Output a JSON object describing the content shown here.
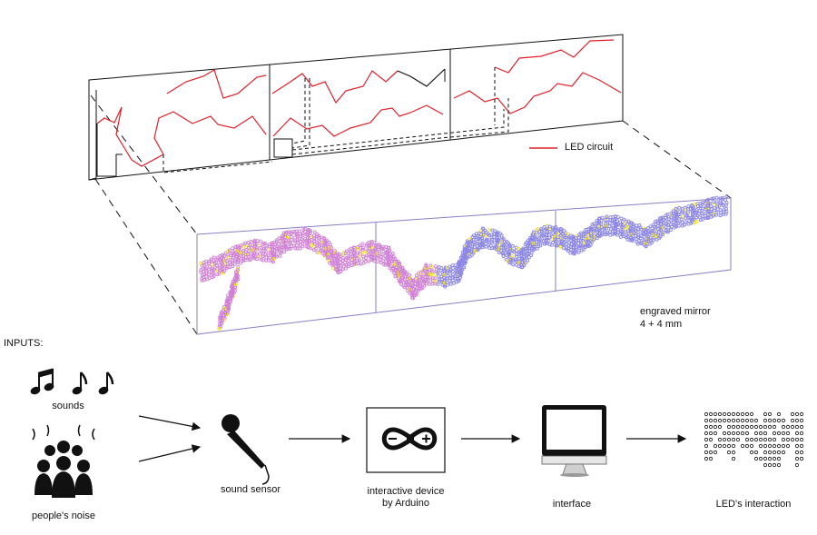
{
  "legend": {
    "label": "LED circuit",
    "color": "#e0202a"
  },
  "mirror": {
    "label_line1": "engraved mirror",
    "label_line2": "4 + 4 mm"
  },
  "inputs": {
    "title": "INPUTS:",
    "sounds_label": "sounds",
    "noise_label": "people's noise"
  },
  "flow": {
    "sensor_label": "sound sensor",
    "device_label_line1": "interactive device",
    "device_label_line2": "by Arduino",
    "interface_label": "interface",
    "led_label": "LED's interaction"
  },
  "icons": [
    "music-notes-icon",
    "crowd-icon",
    "microphone-icon",
    "arduino-logo-icon",
    "monitor-icon",
    "led-matrix-icon"
  ],
  "colors": {
    "circuit": "#e0202a",
    "mirror_border": "#8a7fc4",
    "led_pink": "#d07fd6",
    "led_violet": "#8b86e6",
    "led_yellow": "#f2e21a"
  }
}
